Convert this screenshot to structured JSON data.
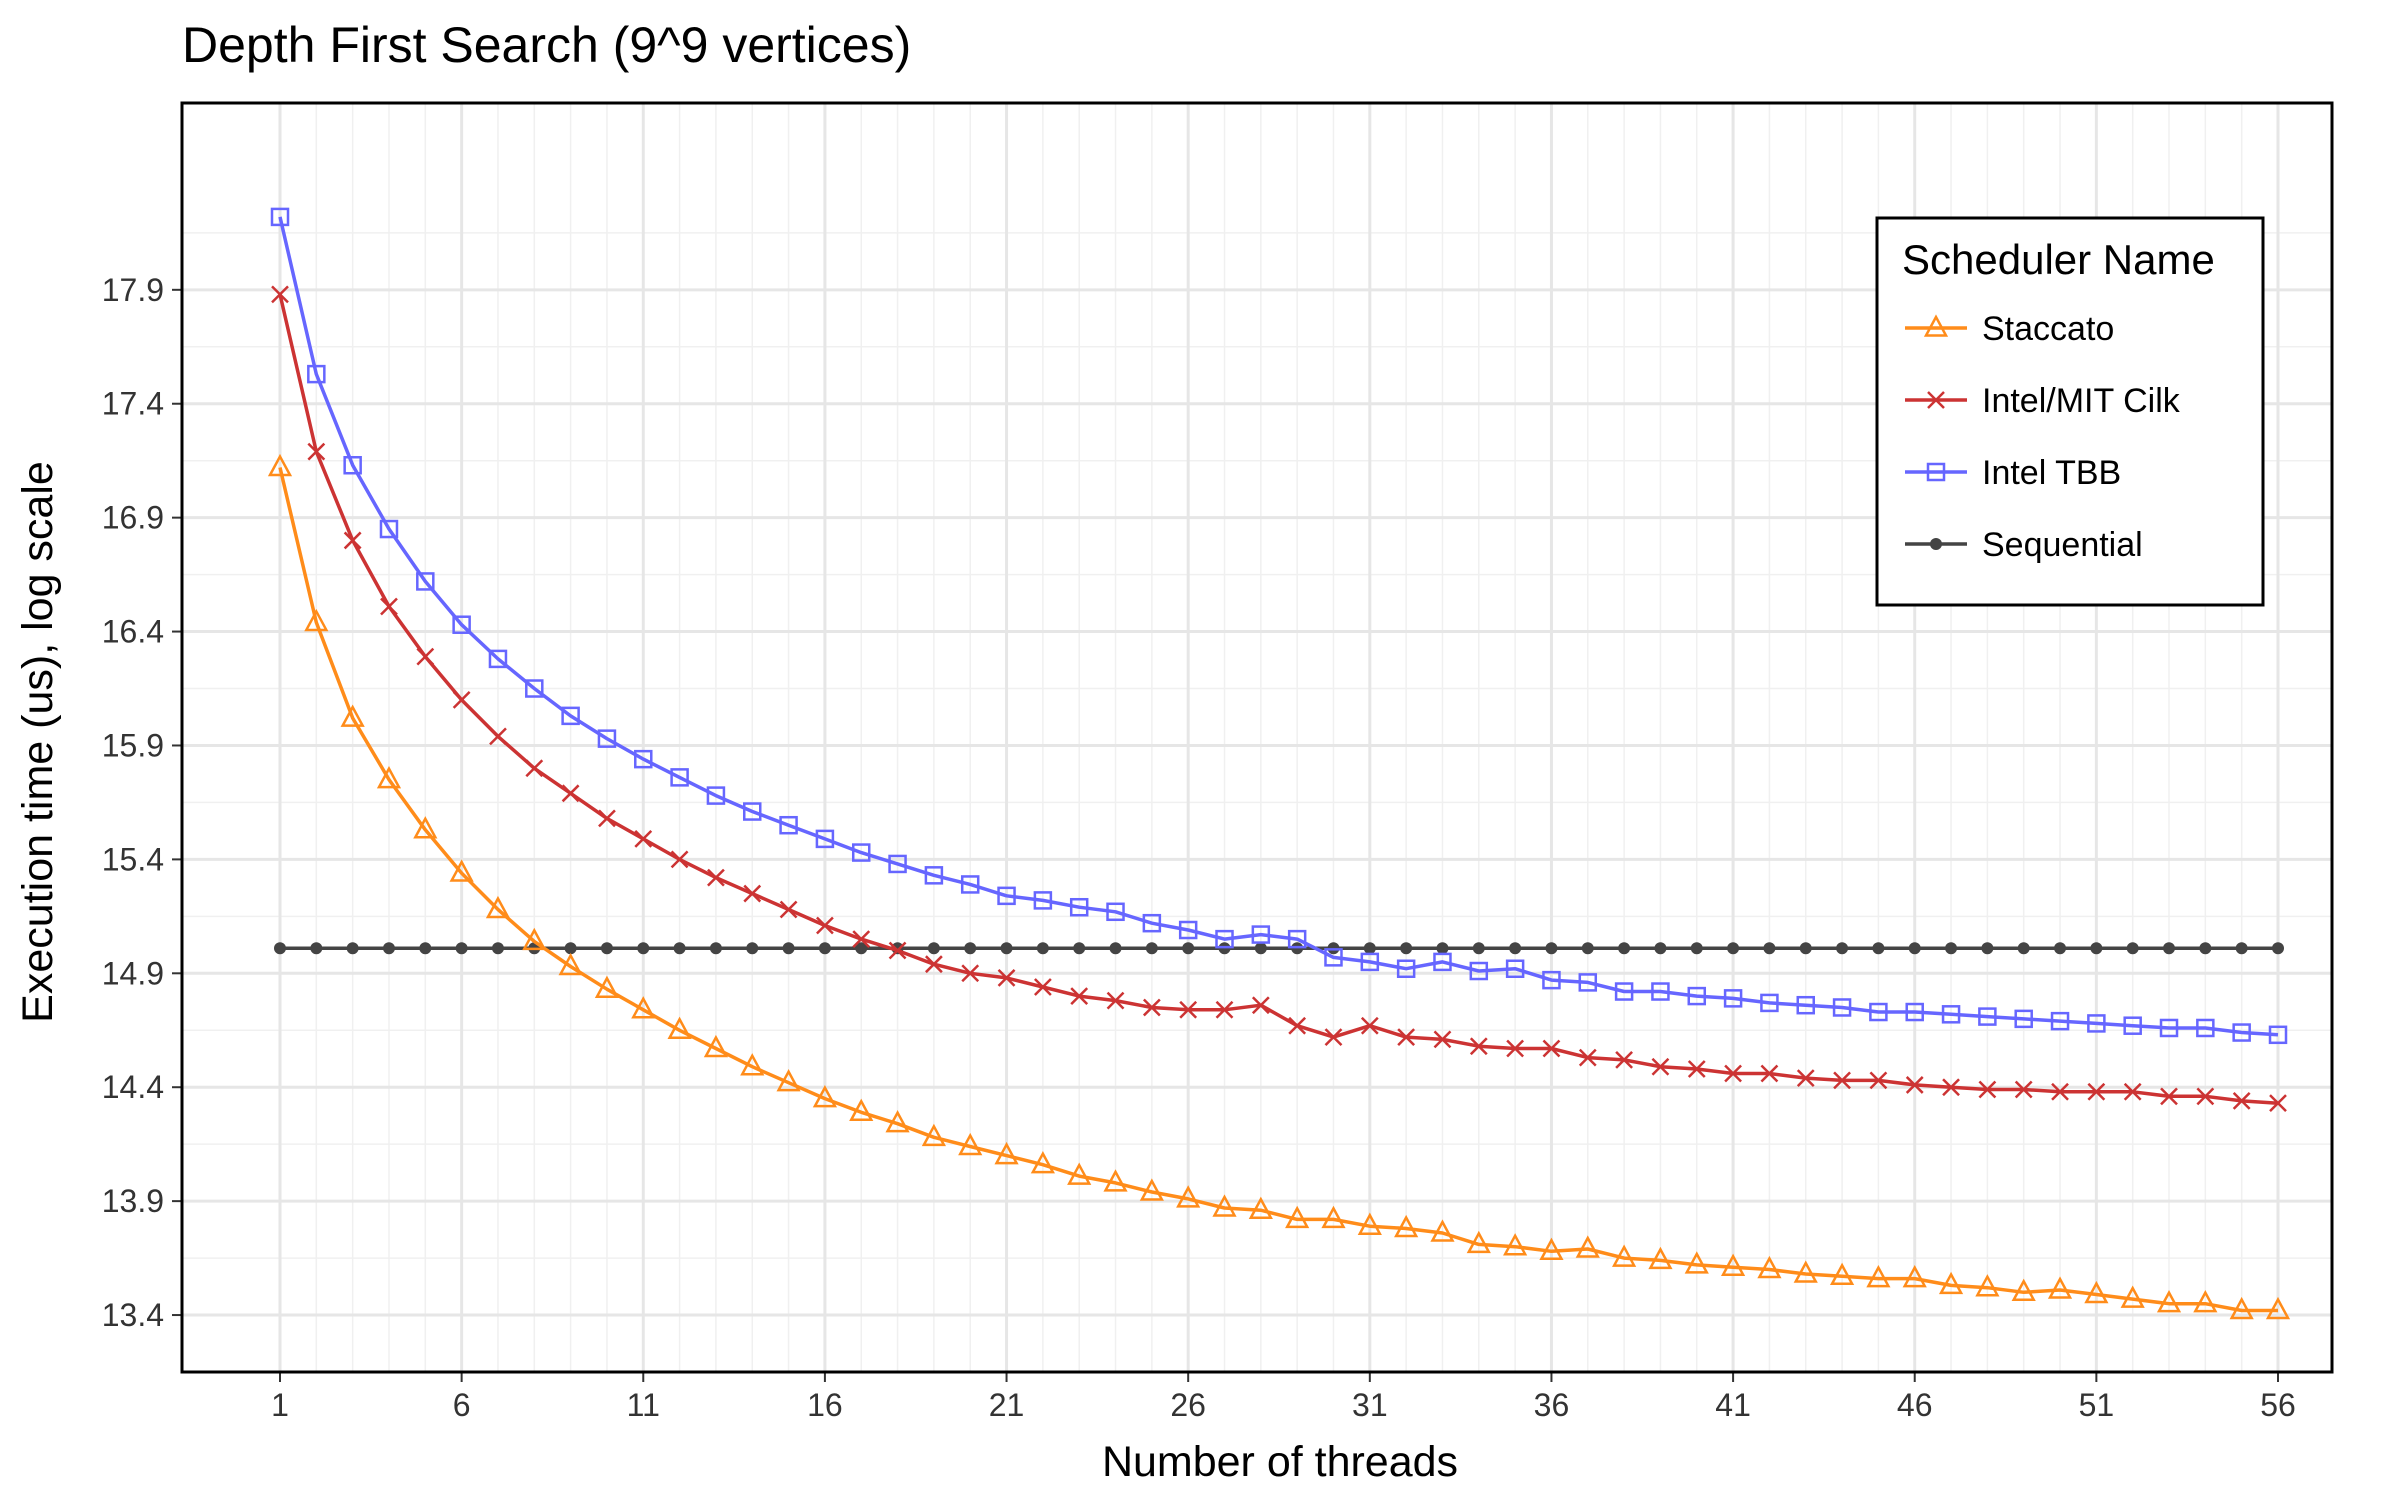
{
  "chart_data": {
    "type": "line",
    "title": "Depth First Search (9^9 vertices)",
    "xlabel": "Number of threads",
    "ylabel": "Execution time (us), log scale",
    "xlim": [
      1,
      56
    ],
    "ylim": [
      13.15,
      18.72
    ],
    "xticks": [
      1,
      6,
      11,
      16,
      21,
      26,
      31,
      36,
      41,
      46,
      51,
      56
    ],
    "yticks": [
      13.4,
      13.9,
      14.4,
      14.9,
      15.4,
      15.9,
      16.4,
      16.9,
      17.4,
      17.9
    ],
    "grid": true,
    "legend": {
      "title": "Scheduler Name",
      "position": "top-right"
    },
    "x": [
      1,
      2,
      3,
      4,
      5,
      6,
      7,
      8,
      9,
      10,
      11,
      12,
      13,
      14,
      15,
      16,
      17,
      18,
      19,
      20,
      21,
      22,
      23,
      24,
      25,
      26,
      27,
      28,
      29,
      30,
      31,
      32,
      33,
      34,
      35,
      36,
      37,
      38,
      39,
      40,
      41,
      42,
      43,
      44,
      45,
      46,
      47,
      48,
      49,
      50,
      51,
      52,
      53,
      54,
      55,
      56
    ],
    "series": [
      {
        "name": "Staccato",
        "color": "#ff8c1a",
        "marker": "triangle-open",
        "values": [
          17.12,
          16.44,
          16.02,
          15.75,
          15.53,
          15.34,
          15.18,
          15.04,
          14.93,
          14.83,
          14.74,
          14.65,
          14.57,
          14.49,
          14.42,
          14.35,
          14.29,
          14.24,
          14.18,
          14.14,
          14.1,
          14.06,
          14.01,
          13.98,
          13.94,
          13.91,
          13.87,
          13.86,
          13.82,
          13.82,
          13.79,
          13.78,
          13.76,
          13.71,
          13.7,
          13.68,
          13.69,
          13.65,
          13.64,
          13.62,
          13.61,
          13.6,
          13.58,
          13.57,
          13.56,
          13.56,
          13.53,
          13.52,
          13.5,
          13.51,
          13.49,
          13.47,
          13.45,
          13.45,
          13.42,
          13.42
        ]
      },
      {
        "name": "Intel/MIT Cilk",
        "color": "#cc3333",
        "marker": "x",
        "values": [
          17.88,
          17.19,
          16.8,
          16.51,
          16.29,
          16.1,
          15.94,
          15.8,
          15.69,
          15.58,
          15.49,
          15.4,
          15.32,
          15.25,
          15.18,
          15.11,
          15.05,
          15.0,
          14.94,
          14.9,
          14.88,
          14.84,
          14.8,
          14.78,
          14.75,
          14.74,
          14.74,
          14.76,
          14.67,
          14.62,
          14.67,
          14.62,
          14.61,
          14.58,
          14.57,
          14.57,
          14.53,
          14.52,
          14.49,
          14.48,
          14.46,
          14.46,
          14.44,
          14.43,
          14.43,
          14.41,
          14.4,
          14.39,
          14.39,
          14.38,
          14.38,
          14.38,
          14.36,
          14.36,
          14.34,
          14.33
        ]
      },
      {
        "name": "Intel TBB",
        "color": "#6666ff",
        "marker": "square-open",
        "values": [
          18.22,
          17.53,
          17.13,
          16.85,
          16.62,
          16.43,
          16.28,
          16.15,
          16.03,
          15.93,
          15.84,
          15.76,
          15.68,
          15.61,
          15.55,
          15.49,
          15.43,
          15.38,
          15.33,
          15.29,
          15.24,
          15.22,
          15.19,
          15.17,
          15.12,
          15.09,
          15.05,
          15.07,
          15.05,
          14.97,
          14.95,
          14.92,
          14.95,
          14.91,
          14.92,
          14.87,
          14.86,
          14.82,
          14.82,
          14.8,
          14.79,
          14.77,
          14.76,
          14.75,
          14.73,
          14.73,
          14.72,
          14.71,
          14.7,
          14.69,
          14.68,
          14.67,
          14.66,
          14.66,
          14.64,
          14.63
        ]
      },
      {
        "name": "Sequential",
        "color": "#444444",
        "marker": "dot",
        "values": [
          15.01,
          15.01,
          15.01,
          15.01,
          15.01,
          15.01,
          15.01,
          15.01,
          15.01,
          15.01,
          15.01,
          15.01,
          15.01,
          15.01,
          15.01,
          15.01,
          15.01,
          15.01,
          15.01,
          15.01,
          15.01,
          15.01,
          15.01,
          15.01,
          15.01,
          15.01,
          15.01,
          15.01,
          15.01,
          15.01,
          15.01,
          15.01,
          15.01,
          15.01,
          15.01,
          15.01,
          15.01,
          15.01,
          15.01,
          15.01,
          15.01,
          15.01,
          15.01,
          15.01,
          15.01,
          15.01,
          15.01,
          15.01,
          15.01,
          15.01,
          15.01,
          15.01,
          15.01,
          15.01,
          15.01,
          15.01
        ]
      }
    ]
  }
}
